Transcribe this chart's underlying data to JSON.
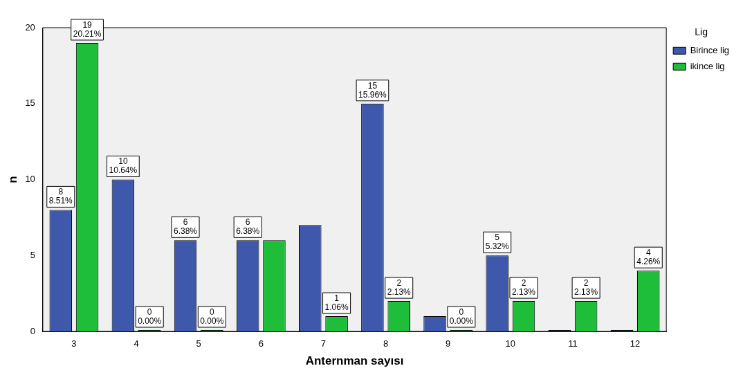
{
  "chart_data": {
    "type": "bar",
    "xlabel": "Anternman sayısı",
    "ylabel": "n",
    "legend_title": "Lig",
    "legend": "top right",
    "categories": [
      "3",
      "4",
      "5",
      "6",
      "7",
      "8",
      "9",
      "10",
      "11",
      "12"
    ],
    "ylim": [
      0,
      20
    ],
    "yticks": [
      0,
      5,
      10,
      15,
      20
    ],
    "grid": false,
    "series": [
      {
        "name": "Birince lig",
        "color": "#3e58ac",
        "values": [
          8,
          10,
          6,
          6,
          7,
          15,
          1,
          5,
          0,
          0
        ],
        "value_labels": [
          "8\n8.51%",
          "10\n10.64%",
          "6\n6.38%",
          "6\n6.38%",
          null,
          "15\n15.96%",
          null,
          "5\n5.32%",
          null,
          null
        ]
      },
      {
        "name": "ikince lig",
        "color": "#1fbe3a",
        "values": [
          19,
          0,
          0,
          6,
          1,
          2,
          0,
          2,
          2,
          4
        ],
        "value_labels": [
          "19\n20.21%",
          "0\n0.00%",
          "0\n0.00%",
          null,
          "1\n1.06%",
          "2\n2.13%",
          "0\n0.00%",
          "2\n2.13%",
          "2\n2.13%",
          "4\n4.26%"
        ]
      }
    ]
  }
}
